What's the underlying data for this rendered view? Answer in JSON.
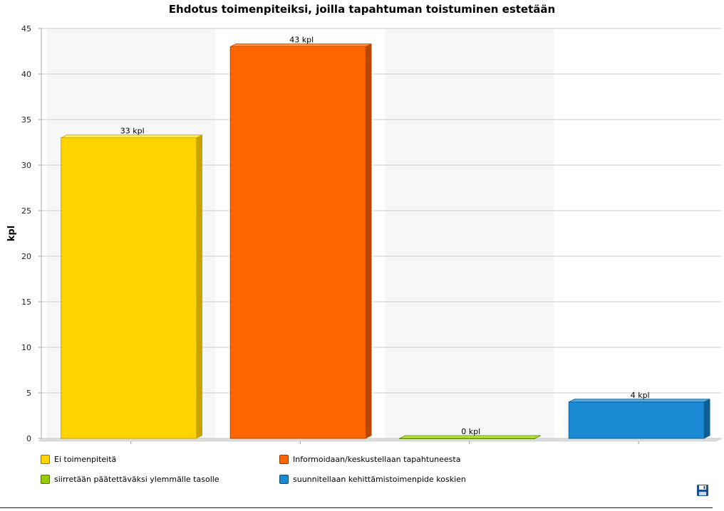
{
  "chart_data": {
    "type": "bar",
    "title": "Ehdotus toimenpiteiksi, joilla tapahtuman toistuminen estetään",
    "ylabel": "kpl",
    "xlabel": "",
    "ylim": [
      0,
      45
    ],
    "y_ticks": [
      "0",
      "5",
      "10",
      "15",
      "20",
      "25",
      "30",
      "35",
      "40",
      "45"
    ],
    "grid": true,
    "legend_position": "bottom",
    "categories": [
      "Ei toimenpiteitä",
      "Informoidaan/keskustellaan tapahtuneesta",
      "siirretään päätettäväksi ylemmälle tasolle",
      "suunnitellaan kehittämistoimenpide koskien"
    ],
    "values": [
      33,
      43,
      0,
      4
    ],
    "data_labels": [
      "33 kpl",
      "43 kpl",
      "0 kpl",
      "4 kpl"
    ],
    "colors": [
      "#FFD300",
      "#FF6600",
      "#99CC00",
      "#1A8AD4"
    ],
    "side_colors": [
      "#C9A300",
      "#B84800",
      "#5E8A00",
      "#0F5E93"
    ],
    "top_colors": [
      "#FFE85C",
      "#FF8A3D",
      "#B8E040",
      "#4FAEE8"
    ]
  },
  "legend": {
    "items": [
      {
        "label": "Ei toimenpiteitä",
        "color": "#FFD300"
      },
      {
        "label": "Informoidaan/keskustellaan tapahtuneesta",
        "color": "#FF6600"
      },
      {
        "label": "siirretään päätettäväksi ylemmälle tasolle",
        "color": "#99CC00"
      },
      {
        "label": "suunnitellaan kehittämistoimenpide koskien",
        "color": "#1A8AD4"
      }
    ]
  },
  "toolbar": {
    "save_icon": "floppy-disk-icon"
  }
}
